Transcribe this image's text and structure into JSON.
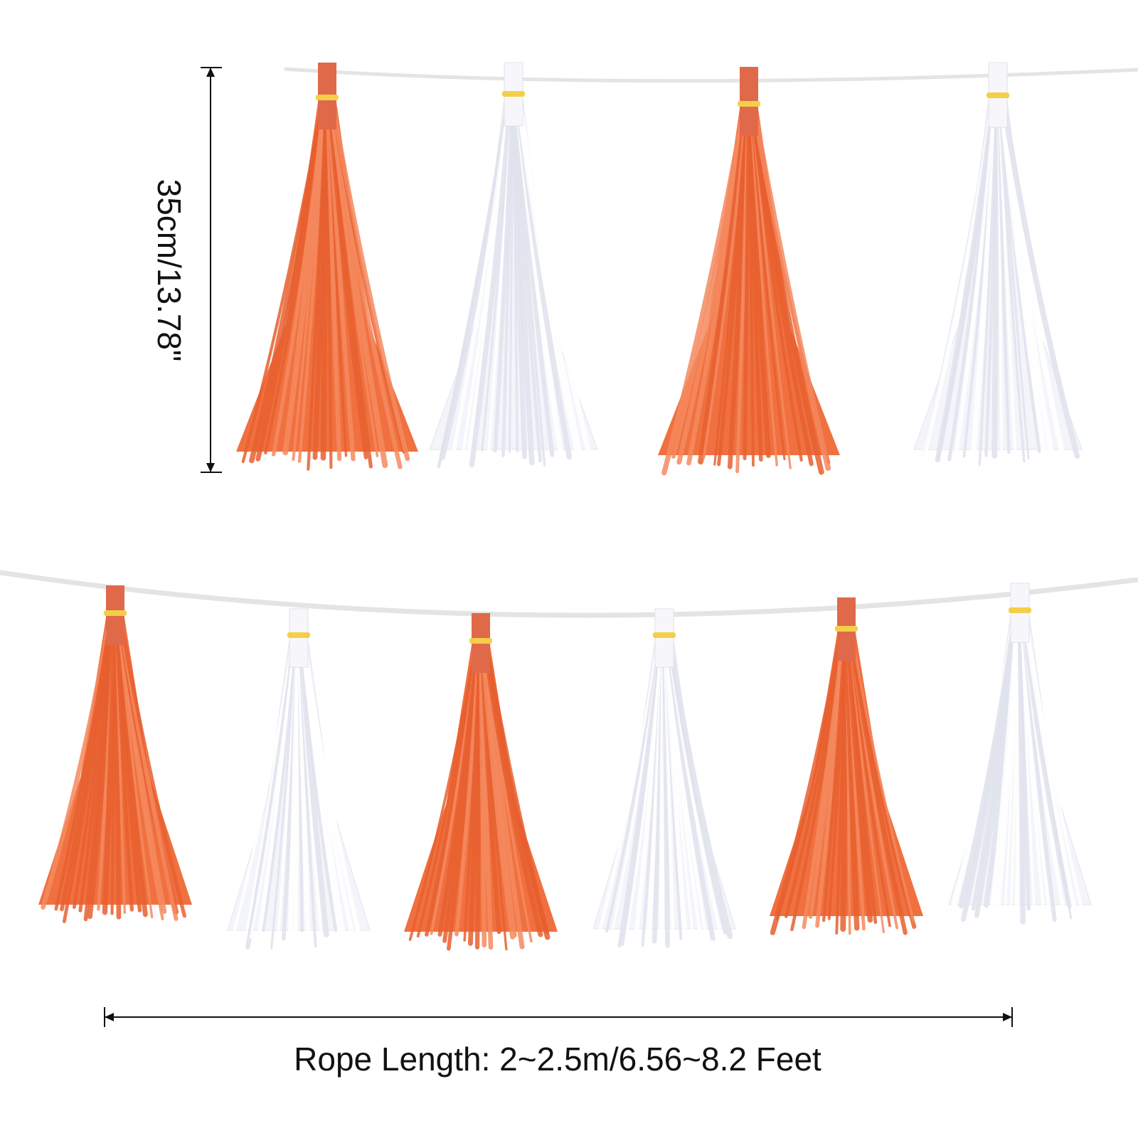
{
  "product": "tissue paper tassel garland",
  "colors": {
    "orange_tassel": "#f0703f",
    "orange_tab": "#e0694a",
    "white_tassel": "#f4f5fa",
    "rope": "#e4e4e4",
    "clip": "#f3cf4a",
    "dimension_line": "#111111"
  },
  "rows": [
    {
      "tassels": [
        "orange",
        "white",
        "orange",
        "white"
      ]
    },
    {
      "tassels": [
        "orange",
        "white",
        "orange",
        "white",
        "orange",
        "white"
      ]
    }
  ],
  "dimensions": {
    "height_label": "35cm/13.78\"",
    "rope_length_label": "Rope Length: 2~2.5m/6.56~8.2 Feet"
  }
}
